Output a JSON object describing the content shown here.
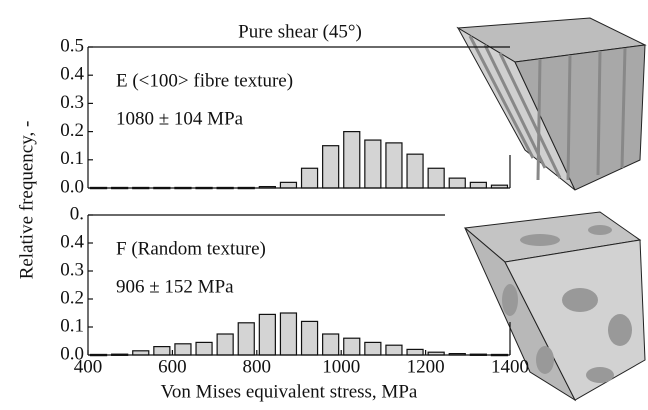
{
  "chart_data": [
    {
      "type": "histogram",
      "title": "Pure shear (45°)",
      "annotations": [
        "E (<100> fibre texture)",
        "1080 ± 104 MPa"
      ],
      "bins": [
        400,
        450,
        500,
        550,
        600,
        650,
        700,
        750,
        800,
        850,
        900,
        950,
        1000,
        1050,
        1100,
        1150,
        1200,
        1250,
        1300,
        1350,
        1400
      ],
      "values": [
        0.002,
        0.002,
        0.002,
        0.002,
        0.002,
        0.002,
        0.002,
        0.002,
        0.005,
        0.02,
        0.07,
        0.15,
        0.2,
        0.17,
        0.16,
        0.12,
        0.07,
        0.035,
        0.02,
        0.01
      ],
      "color": "#d4d4d4",
      "xlim": [
        400,
        1400
      ],
      "ylim": [
        0,
        0.5
      ],
      "yticks": [
        {
          "value": 0,
          "label": "0.0"
        },
        0.1,
        0.2,
        0.3,
        0.4,
        0.5
      ]
    },
    {
      "type": "histogram",
      "annotations": [
        "F (Random texture)",
        "906 ± 152 MPa"
      ],
      "ylabel": "Relative frequency, -",
      "xlabel": "Von Mises equivalent stress, MPa",
      "bins": [
        400,
        450,
        500,
        550,
        600,
        650,
        700,
        750,
        800,
        850,
        900,
        950,
        1000,
        1050,
        1100,
        1150,
        1200,
        1250,
        1300,
        1350,
        1400
      ],
      "values": [
        0.002,
        0.003,
        0.015,
        0.03,
        0.04,
        0.045,
        0.075,
        0.115,
        0.145,
        0.15,
        0.12,
        0.075,
        0.06,
        0.045,
        0.035,
        0.02,
        0.01,
        0.005,
        0.003,
        0.002
      ],
      "color": "#d4d4d4",
      "xlim": [
        400,
        1400
      ],
      "ylim": [
        0,
        0.5
      ],
      "xticks": [
        400,
        600,
        800,
        1000,
        1200,
        1400
      ],
      "yticks": [
        {
          "value": 0,
          "label": "0.0"
        },
        0.1,
        0.2,
        0.3,
        0.4,
        {
          "value": 0.5,
          "label": "0."
        }
      ]
    }
  ]
}
